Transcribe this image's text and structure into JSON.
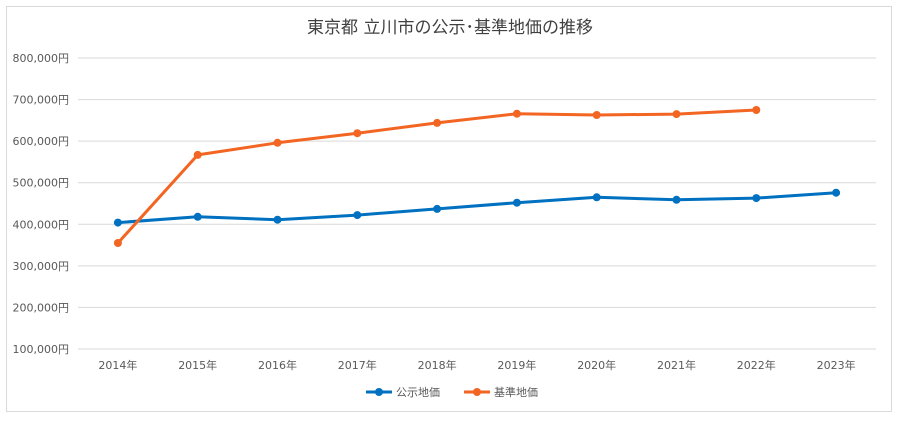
{
  "chart_data": {
    "type": "line",
    "title": "東京都 立川市の公示･基準地価の推移",
    "xlabel": "",
    "ylabel": "",
    "categories": [
      "2014年",
      "2015年",
      "2016年",
      "2017年",
      "2018年",
      "2019年",
      "2020年",
      "2021年",
      "2022年",
      "2023年"
    ],
    "ylim": [
      100000,
      800000
    ],
    "y_ticks": [
      "100,000円",
      "200,000円",
      "300,000円",
      "400,000円",
      "500,000円",
      "600,000円",
      "700,000円",
      "800,000円"
    ],
    "grid": true,
    "legend_position": "bottom",
    "series": [
      {
        "name": "公示地価",
        "color": "#0070c0",
        "values": [
          404000,
          418000,
          411000,
          422000,
          437000,
          452000,
          465000,
          459000,
          463000,
          476000
        ]
      },
      {
        "name": "基準地価",
        "color": "#f26522",
        "values": [
          355000,
          567000,
          596000,
          619000,
          644000,
          666000,
          663000,
          665000,
          675000,
          null
        ]
      }
    ]
  }
}
